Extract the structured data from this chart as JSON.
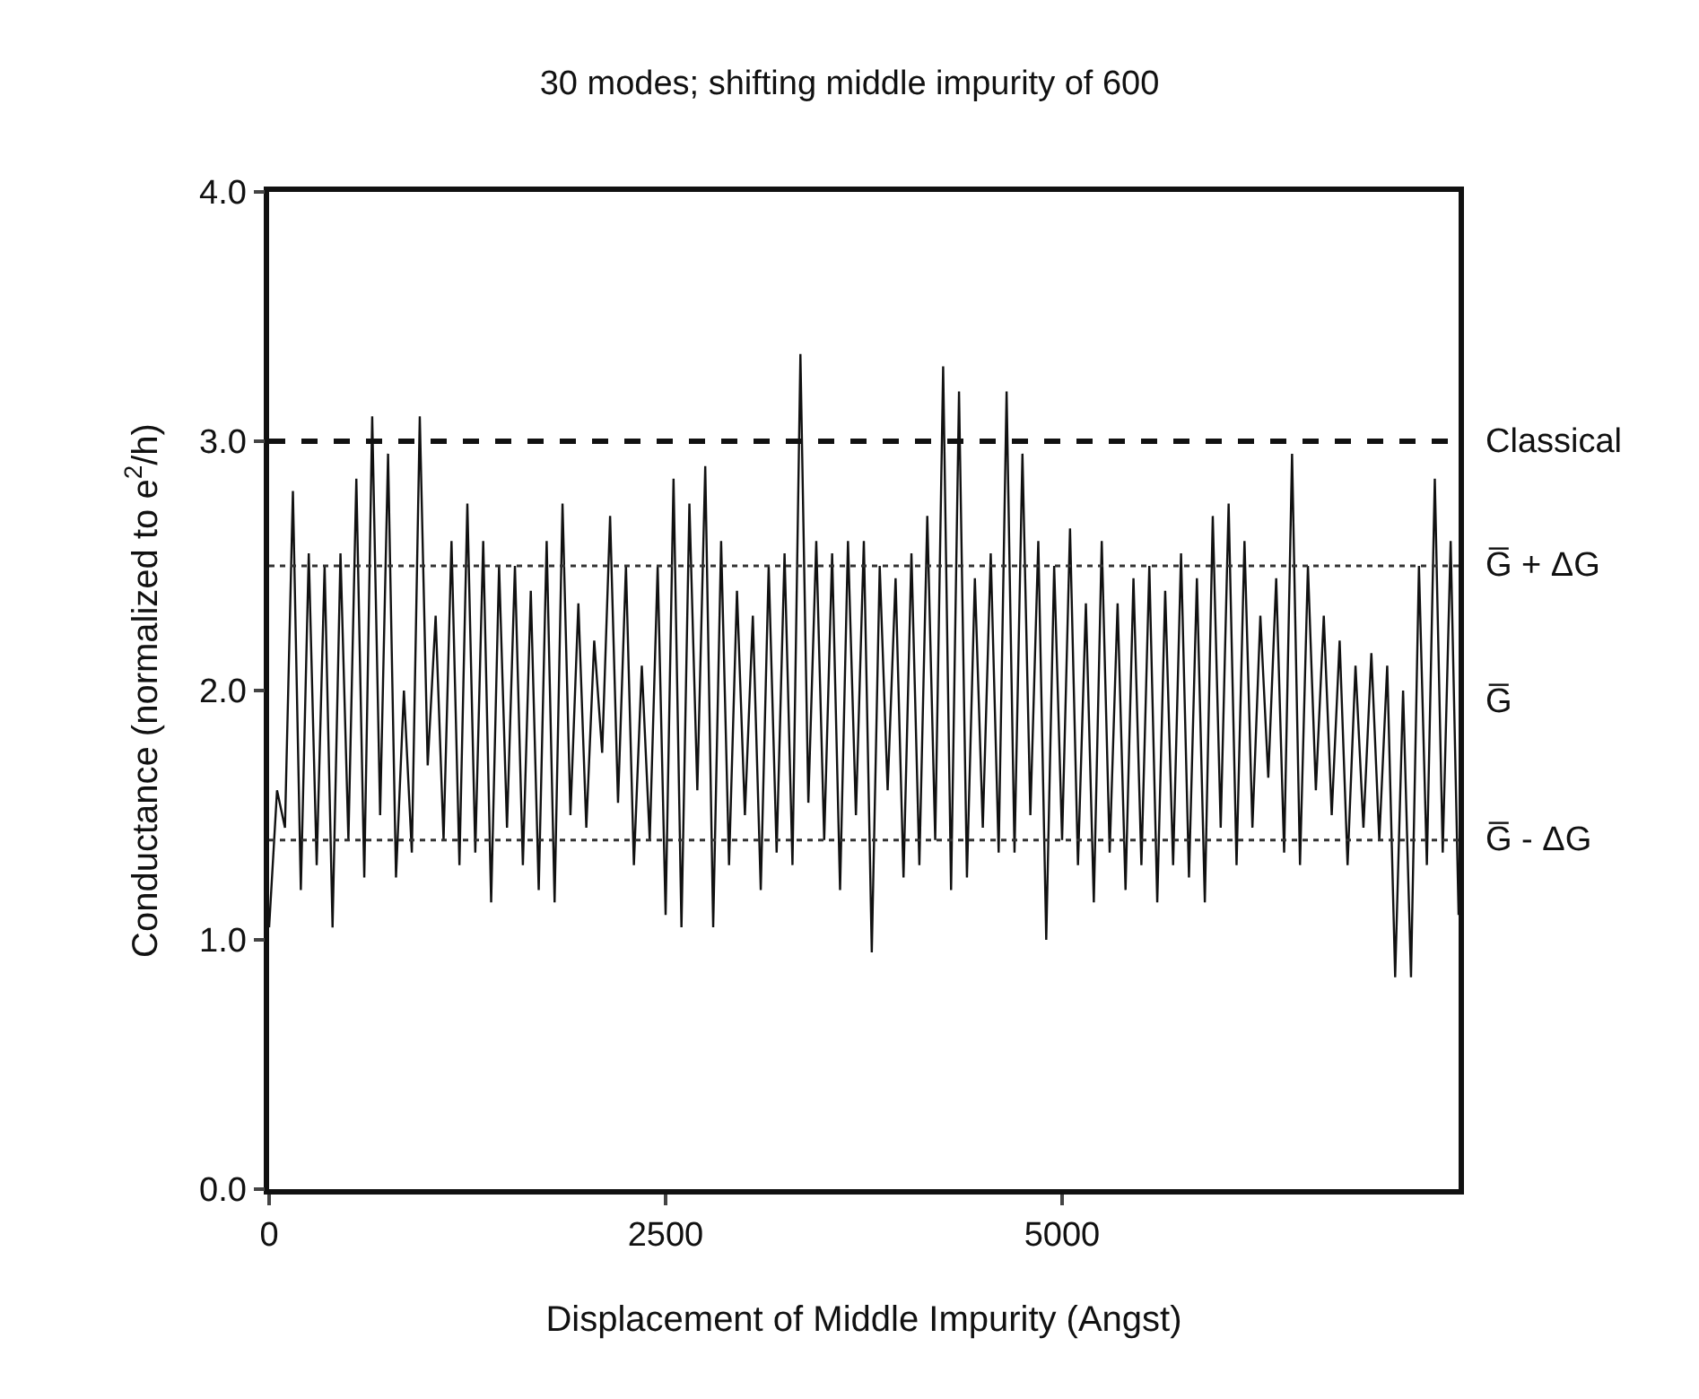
{
  "chart_data": {
    "type": "line",
    "title": "30 modes; shifting middle impurity of 600",
    "xlabel": "Displacement of Middle Impurity (Angst)",
    "ylabel": "Conductance (normalized to e$^{2}$/h)",
    "x": [
      0,
      50,
      100,
      150,
      200,
      250,
      300,
      350,
      400,
      450,
      500,
      550,
      600,
      650,
      700,
      750,
      800,
      850,
      900,
      950,
      1000,
      1050,
      1100,
      1150,
      1200,
      1250,
      1300,
      1350,
      1400,
      1450,
      1500,
      1550,
      1600,
      1650,
      1700,
      1750,
      1800,
      1850,
      1900,
      1950,
      2000,
      2050,
      2100,
      2150,
      2200,
      2250,
      2300,
      2350,
      2400,
      2450,
      2500,
      2550,
      2600,
      2650,
      2700,
      2750,
      2800,
      2850,
      2900,
      2950,
      3000,
      3050,
      3100,
      3150,
      3200,
      3250,
      3300,
      3350,
      3400,
      3450,
      3500,
      3550,
      3600,
      3650,
      3700,
      3750,
      3800,
      3850,
      3900,
      3950,
      4000,
      4050,
      4100,
      4150,
      4200,
      4250,
      4300,
      4350,
      4400,
      4450,
      4500,
      4550,
      4600,
      4650,
      4700,
      4750,
      4800,
      4850,
      4900,
      4950,
      5000,
      5050,
      5100,
      5150,
      5200,
      5250,
      5300,
      5350,
      5400,
      5450,
      5500,
      5550,
      5600,
      5650,
      5700,
      5750,
      5800,
      5850,
      5900,
      5950,
      6000,
      6050,
      6100,
      6150,
      6200,
      6250,
      6300,
      6350,
      6400,
      6450,
      6500,
      6550,
      6600,
      6650,
      6700,
      6750,
      6800,
      6850,
      6900,
      6950,
      7000,
      7050,
      7100,
      7150,
      7200,
      7250,
      7300,
      7350,
      7400,
      7450,
      7500
    ],
    "series": [
      {
        "color": "#111111",
        "values": [
          1.05,
          1.6,
          1.45,
          2.8,
          1.2,
          2.55,
          1.3,
          2.5,
          1.05,
          2.55,
          1.4,
          2.85,
          1.25,
          3.1,
          1.5,
          2.95,
          1.25,
          2.0,
          1.35,
          3.1,
          1.7,
          2.3,
          1.4,
          2.6,
          1.3,
          2.75,
          1.35,
          2.6,
          1.15,
          2.5,
          1.45,
          2.5,
          1.3,
          2.4,
          1.2,
          2.6,
          1.15,
          2.75,
          1.5,
          2.35,
          1.45,
          2.2,
          1.75,
          2.7,
          1.55,
          2.5,
          1.3,
          2.1,
          1.4,
          2.5,
          1.1,
          2.85,
          1.05,
          2.75,
          1.6,
          2.9,
          1.05,
          2.6,
          1.3,
          2.4,
          1.5,
          2.3,
          1.2,
          2.5,
          1.35,
          2.55,
          1.3,
          3.35,
          1.55,
          2.6,
          1.4,
          2.55,
          1.2,
          2.6,
          1.5,
          2.6,
          0.95,
          2.5,
          1.6,
          2.45,
          1.25,
          2.55,
          1.3,
          2.7,
          1.4,
          3.3,
          1.2,
          3.2,
          1.25,
          2.45,
          1.45,
          2.55,
          1.35,
          3.2,
          1.35,
          2.95,
          1.5,
          2.6,
          1.0,
          2.5,
          1.4,
          2.65,
          1.3,
          2.35,
          1.15,
          2.6,
          1.35,
          2.35,
          1.2,
          2.45,
          1.3,
          2.5,
          1.15,
          2.4,
          1.3,
          2.55,
          1.25,
          2.45,
          1.15,
          2.7,
          1.45,
          2.75,
          1.3,
          2.6,
          1.45,
          2.3,
          1.65,
          2.45,
          1.35,
          2.95,
          1.3,
          2.5,
          1.6,
          2.3,
          1.5,
          2.2,
          1.3,
          2.1,
          1.45,
          2.15,
          1.4,
          2.1,
          0.85,
          2.0,
          0.85,
          2.5,
          1.3,
          2.85,
          1.35,
          2.6,
          1.1
        ]
      }
    ],
    "xlim": [
      0,
      7500
    ],
    "xticks": [
      0,
      2500,
      5000
    ],
    "ylim": [
      0,
      4
    ],
    "yticks": [
      {
        "value": 0,
        "label": "0.0"
      },
      {
        "value": 1,
        "label": "1.0"
      },
      {
        "value": 2,
        "label": "2.0"
      },
      {
        "value": 3,
        "label": "3.0"
      },
      {
        "value": 4,
        "label": "4.0"
      }
    ],
    "ref_lines": [
      {
        "axis": "y",
        "value": 3.0,
        "label": "Classical",
        "line_style": "dashed",
        "color": "#111111"
      },
      {
        "axis": "y",
        "value": 2.5,
        "label": "G̅ + ΔG",
        "line_style": "dotted",
        "color": "#333333"
      },
      {
        "axis": "y",
        "value": 1.4,
        "label": "G̅ - ΔG",
        "line_style": "dotted",
        "color": "#333333"
      }
    ],
    "annotations": [
      "G̅"
    ],
    "grid": false,
    "marker": "none",
    "line_style": "solid"
  }
}
